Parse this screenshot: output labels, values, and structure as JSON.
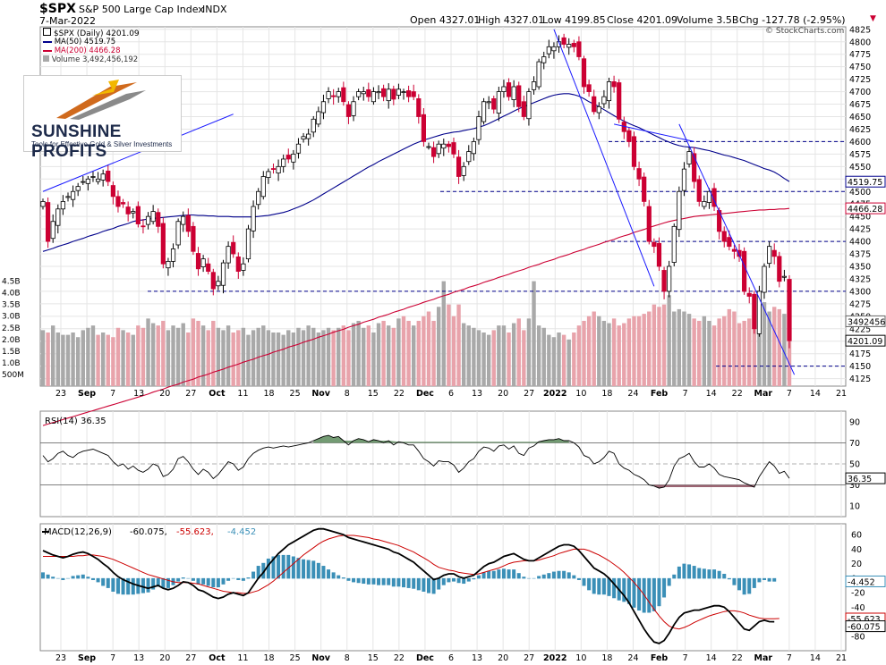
{
  "header": {
    "symbol": "$SPX",
    "name": "S&P 500 Large Cap Index",
    "exchange": "INDX",
    "date": "7-Mar-2022",
    "open": "Open 4327.01",
    "high": "High 4327.01",
    "low": "Low 4199.85",
    "close": "Close 4201.09",
    "volume": "Volume 3.5B",
    "chg": "Chg -127.78 (-2.95%)",
    "chg_arrow": "▼",
    "source": "© StockCharts.com"
  },
  "legend": {
    "price": "$SPX (Daily) 4201.09",
    "ma50": "MA(50) 4519.75",
    "ma200": "MA(200) 4466.28",
    "volume": "Volume 3,492,456,192"
  },
  "logo": {
    "name": "SUNSHINE PROFITS",
    "tagline": "Tools for Effective Gold & Silver Investments"
  },
  "colors": {
    "up": "#ffffff",
    "down": "#cc0033",
    "ma50": "#00008b",
    "ma200": "#cc0033",
    "volUp": "#a9a9a9",
    "volDown": "#e8a3ab",
    "macdHist": "#3a8fb7",
    "grid": "#e5e5e5",
    "trend": "#1a1aff"
  },
  "chart_data": [
    {
      "type": "candlestick",
      "title": "$SPX S&P 500 Large Cap Index INDX",
      "ylim": [
        4110,
        4830
      ],
      "y_ticks": [
        4125,
        4150,
        4175,
        4200,
        4225,
        4250,
        4275,
        4300,
        4325,
        4350,
        4375,
        4400,
        4425,
        4450,
        4475,
        4500,
        4525,
        4550,
        4575,
        4600,
        4625,
        4650,
        4675,
        4700,
        4725,
        4750,
        4775,
        4800,
        4825
      ],
      "x_ticks": [
        "23",
        "Sep",
        "7",
        "13",
        "20",
        "27",
        "Oct",
        "11",
        "18",
        "25",
        "Nov",
        "8",
        "15",
        "22",
        "Dec",
        "6",
        "13",
        "20",
        "27",
        "2022",
        "10",
        "18",
        "24",
        "Feb",
        "7",
        "14",
        "22",
        "Mar",
        "7",
        "14",
        "21"
      ],
      "last_price_label": "4201.09",
      "ma50_label": "4519.75",
      "ma200_label": "4466.28",
      "volume_label": "3492456",
      "volume_ticks": [
        "4.5B",
        "4.0B",
        "3.5B",
        "3.0B",
        "2.5B",
        "2.0B",
        "1.5B",
        "1.0B",
        "500M"
      ],
      "horizontal_levels": [
        4300,
        4400,
        4500,
        4600,
        4150
      ],
      "closes": [
        4480,
        4400,
        4440,
        4465,
        4480,
        4490,
        4500,
        4510,
        4520,
        4525,
        4530,
        4525,
        4535,
        4520,
        4490,
        4470,
        4475,
        4455,
        4460,
        4435,
        4430,
        4450,
        4460,
        4430,
        4355,
        4360,
        4385,
        4440,
        4450,
        4420,
        4380,
        4345,
        4365,
        4340,
        4305,
        4320,
        4357,
        4390,
        4375,
        4340,
        4355,
        4425,
        4470,
        4500,
        4530,
        4540,
        4545,
        4550,
        4565,
        4565,
        4575,
        4595,
        4610,
        4615,
        4645,
        4660,
        4680,
        4700,
        4690,
        4700,
        4680,
        4650,
        4680,
        4700,
        4700,
        4690,
        4700,
        4700,
        4690,
        4705,
        4685,
        4705,
        4700,
        4690,
        4690,
        4650,
        4600,
        4590,
        4570,
        4595,
        4595,
        4590,
        4575,
        4530,
        4550,
        4580,
        4600,
        4650,
        4680,
        4680,
        4665,
        4700,
        4710,
        4690,
        4710,
        4670,
        4650,
        4700,
        4720,
        4760,
        4770,
        4790,
        4790,
        4800,
        4795,
        4795,
        4790,
        4770,
        4710,
        4700,
        4660,
        4670,
        4690,
        4720,
        4710,
        4645,
        4620,
        4600,
        4550,
        4525,
        4480,
        4400,
        4390,
        4350,
        4300,
        4350,
        4430,
        4500,
        4545,
        4580,
        4520,
        4480,
        4480,
        4500,
        4470,
        4420,
        4400,
        4390,
        4380,
        4370,
        4300,
        4290,
        4225,
        4300,
        4350,
        4390,
        4370,
        4320,
        4330,
        4201
      ],
      "ma50": [
        4380,
        4383,
        4386,
        4390,
        4393,
        4396,
        4400,
        4403,
        4406,
        4410,
        4413,
        4416,
        4420,
        4423,
        4426,
        4430,
        4433,
        4436,
        4440,
        4442,
        4443,
        4445,
        4446,
        4447,
        4448,
        4449,
        4450,
        4451,
        4452,
        4453,
        4453,
        4452,
        4452,
        4451,
        4451,
        4450,
        4450,
        4450,
        4449,
        4449,
        4449,
        4449,
        4449,
        4450,
        4451,
        4452,
        4454,
        4456,
        4458,
        4461,
        4465,
        4469,
        4473,
        4478,
        4483,
        4489,
        4495,
        4501,
        4507,
        4513,
        4519,
        4525,
        4531,
        4537,
        4543,
        4549,
        4554,
        4560,
        4565,
        4570,
        4575,
        4580,
        4585,
        4590,
        4595,
        4599,
        4603,
        4606,
        4609,
        4612,
        4615,
        4617,
        4619,
        4620,
        4622,
        4624,
        4626,
        4629,
        4632,
        4636,
        4641,
        4646,
        4651,
        4656,
        4661,
        4666,
        4670,
        4674,
        4678,
        4682,
        4686,
        4690,
        4693,
        4695,
        4696,
        4696,
        4694,
        4691,
        4686,
        4680,
        4675,
        4670,
        4664,
        4658,
        4652,
        4646,
        4641,
        4636,
        4632,
        4628,
        4623,
        4618,
        4613,
        4608,
        4603,
        4599,
        4595,
        4592,
        4590,
        4589,
        4588,
        4586,
        4584,
        4582,
        4579,
        4576,
        4573,
        4571,
        4568,
        4565,
        4562,
        4558,
        4554,
        4550,
        4546,
        4543,
        4539,
        4533,
        4526,
        4520
      ],
      "ma200": [
        4025,
        4028,
        4031,
        4034,
        4038,
        4041,
        4044,
        4048,
        4051,
        4054,
        4058,
        4061,
        4064,
        4068,
        4071,
        4074,
        4078,
        4081,
        4084,
        4088,
        4091,
        4094,
        4098,
        4101,
        4104,
        4108,
        4111,
        4114,
        4118,
        4121,
        4124,
        4128,
        4131,
        4134,
        4138,
        4141,
        4144,
        4148,
        4151,
        4154,
        4158,
        4161,
        4164,
        4168,
        4171,
        4174,
        4178,
        4181,
        4184,
        4188,
        4191,
        4194,
        4198,
        4201,
        4204,
        4208,
        4211,
        4214,
        4218,
        4221,
        4224,
        4228,
        4231,
        4234,
        4238,
        4241,
        4244,
        4248,
        4251,
        4254,
        4258,
        4261,
        4264,
        4268,
        4271,
        4274,
        4278,
        4281,
        4284,
        4288,
        4291,
        4294,
        4298,
        4301,
        4304,
        4308,
        4311,
        4314,
        4318,
        4321,
        4324,
        4328,
        4331,
        4334,
        4338,
        4341,
        4344,
        4348,
        4351,
        4354,
        4358,
        4361,
        4364,
        4368,
        4371,
        4374,
        4378,
        4381,
        4384,
        4388,
        4391,
        4394,
        4398,
        4401,
        4404,
        4408,
        4411,
        4414,
        4418,
        4421,
        4424,
        4428,
        4431,
        4434,
        4437,
        4440,
        4442,
        4444,
        4446,
        4448,
        4450,
        4451,
        4452,
        4453,
        4454,
        4455,
        4456,
        4457,
        4458,
        4459,
        4460,
        4461,
        4462,
        4463,
        4463,
        4464,
        4464,
        4465,
        4465,
        4466
      ],
      "volumes": [
        2.4,
        2.3,
        2.6,
        2.3,
        2.2,
        2.2,
        2.3,
        2.1,
        2.4,
        2.5,
        2.6,
        2.2,
        2.3,
        2.2,
        2.1,
        2.5,
        2.4,
        2.3,
        2.2,
        2.6,
        2.5,
        2.9,
        2.7,
        2.6,
        2.8,
        2.4,
        2.6,
        2.5,
        2.7,
        2.3,
        2.9,
        2.8,
        2.6,
        2.4,
        2.8,
        2.5,
        2.4,
        2.6,
        2.3,
        2.4,
        2.5,
        2.2,
        2.4,
        2.5,
        2.6,
        2.4,
        2.3,
        2.3,
        2.2,
        2.4,
        2.3,
        2.5,
        2.4,
        2.6,
        2.5,
        2.3,
        2.4,
        2.5,
        2.4,
        2.5,
        2.6,
        2.4,
        2.7,
        2.8,
        2.5,
        2.6,
        2.3,
        2.7,
        2.8,
        2.6,
        2.5,
        2.9,
        3.0,
        2.8,
        2.6,
        2.8,
        3.0,
        3.2,
        2.8,
        3.4,
        4.5,
        3.5,
        3.0,
        3.5,
        2.7,
        2.6,
        2.5,
        2.4,
        2.3,
        2.2,
        2.4,
        2.6,
        2.6,
        2.3,
        2.7,
        2.9,
        2.4,
        2.9,
        4.5,
        2.6,
        2.5,
        2.2,
        2.1,
        2.3,
        2.2,
        2.0,
        2.3,
        2.6,
        2.8,
        3.0,
        3.2,
        3.0,
        2.8,
        2.7,
        2.9,
        2.6,
        2.7,
        2.9,
        3.0,
        3.0,
        3.1,
        3.2,
        3.5,
        3.4,
        3.5,
        3.9,
        3.2,
        3.3,
        3.2,
        3.1,
        2.9,
        2.8,
        3.0,
        2.8,
        2.6,
        2.9,
        3.0,
        3.3,
        3.2,
        2.7,
        2.8,
        2.9,
        3.1,
        3.5,
        3.6,
        3.2,
        3.4,
        3.3,
        3.1,
        3.5
      ]
    },
    {
      "type": "line",
      "title": "RSI(14) 36.35",
      "ylim": [
        0,
        100
      ],
      "y_ticks": [
        10,
        30,
        50,
        70,
        90
      ],
      "levels": [
        30,
        50,
        70
      ],
      "last_label": "36.35",
      "values": [
        58,
        52,
        55,
        60,
        62,
        58,
        56,
        60,
        62,
        63,
        64,
        62,
        60,
        58,
        52,
        48,
        50,
        45,
        48,
        44,
        42,
        45,
        50,
        48,
        38,
        40,
        45,
        55,
        57,
        52,
        45,
        40,
        45,
        42,
        36,
        40,
        46,
        52,
        50,
        44,
        47,
        55,
        60,
        63,
        65,
        66,
        65,
        66,
        67,
        66,
        67,
        68,
        69,
        70,
        72,
        74,
        76,
        77,
        75,
        76,
        72,
        68,
        72,
        74,
        73,
        71,
        73,
        72,
        70,
        72,
        68,
        71,
        70,
        68,
        68,
        62,
        55,
        52,
        48,
        53,
        52,
        52,
        49,
        42,
        46,
        52,
        55,
        62,
        66,
        65,
        62,
        67,
        68,
        64,
        67,
        60,
        58,
        65,
        67,
        71,
        72,
        73,
        73,
        74,
        72,
        72,
        70,
        66,
        58,
        56,
        50,
        52,
        56,
        62,
        60,
        50,
        46,
        44,
        40,
        38,
        35,
        30,
        29,
        27,
        28,
        35,
        48,
        55,
        57,
        60,
        52,
        47,
        47,
        50,
        46,
        40,
        38,
        37,
        36,
        35,
        32,
        30,
        28,
        38,
        45,
        52,
        48,
        41,
        43,
        36.35
      ]
    },
    {
      "type": "line",
      "title": "MACD(12,26,9) -60.075, -55.623, -4.452",
      "ylim": [
        -100,
        75
      ],
      "y_ticks": [
        60,
        40,
        20,
        0,
        -20,
        -40,
        -60,
        -80
      ],
      "last_macd_label": "-60.075",
      "last_signal_label": "-55.623",
      "last_hist_label": "-4.452",
      "macd": [
        38,
        35,
        32,
        30,
        28,
        30,
        33,
        35,
        36,
        34,
        30,
        26,
        20,
        15,
        8,
        2,
        -2,
        -5,
        -8,
        -10,
        -12,
        -14,
        -12,
        -10,
        -14,
        -16,
        -14,
        -10,
        -5,
        -6,
        -10,
        -16,
        -18,
        -22,
        -26,
        -28,
        -26,
        -22,
        -20,
        -22,
        -24,
        -20,
        -10,
        0,
        8,
        18,
        26,
        34,
        40,
        46,
        50,
        54,
        58,
        62,
        66,
        68,
        68,
        66,
        64,
        62,
        60,
        56,
        54,
        52,
        50,
        48,
        46,
        44,
        42,
        40,
        36,
        34,
        30,
        26,
        22,
        16,
        10,
        4,
        -2,
        0,
        4,
        6,
        6,
        2,
        0,
        2,
        4,
        10,
        16,
        20,
        22,
        26,
        30,
        32,
        34,
        30,
        26,
        24,
        24,
        28,
        32,
        36,
        40,
        44,
        46,
        46,
        44,
        38,
        30,
        22,
        14,
        10,
        6,
        0,
        -8,
        -16,
        -24,
        -34,
        -46,
        -58,
        -70,
        -80,
        -88,
        -90,
        -86,
        -76,
        -64,
        -54,
        -48,
        -46,
        -44,
        -44,
        -42,
        -40,
        -38,
        -38,
        -40,
        -46,
        -54,
        -62,
        -70,
        -72,
        -66,
        -60,
        -58,
        -60,
        -60.075
      ],
      "signal": [
        30,
        30,
        30,
        30,
        30,
        30,
        30,
        31,
        31,
        32,
        32,
        31,
        30,
        28,
        26,
        23,
        20,
        17,
        14,
        11,
        8,
        5,
        3,
        1,
        -1,
        -3,
        -5,
        -6,
        -6,
        -6,
        -7,
        -8,
        -10,
        -12,
        -14,
        -16,
        -18,
        -19,
        -20,
        -20,
        -21,
        -21,
        -19,
        -17,
        -13,
        -9,
        -4,
        2,
        8,
        14,
        20,
        26,
        32,
        37,
        42,
        47,
        51,
        54,
        56,
        58,
        59,
        59,
        59,
        58,
        57,
        56,
        54,
        53,
        51,
        49,
        47,
        45,
        42,
        39,
        36,
        32,
        28,
        24,
        19,
        15,
        13,
        11,
        10,
        8,
        7,
        6,
        5,
        6,
        8,
        10,
        12,
        14,
        17,
        20,
        22,
        23,
        24,
        24,
        24,
        25,
        27,
        29,
        31,
        34,
        36,
        38,
        40,
        40,
        40,
        38,
        35,
        32,
        28,
        24,
        19,
        14,
        8,
        1,
        -6,
        -14,
        -23,
        -33,
        -43,
        -52,
        -60,
        -66,
        -69,
        -70,
        -68,
        -65,
        -61,
        -58,
        -55,
        -52,
        -50,
        -48,
        -46,
        -45,
        -45,
        -46,
        -48,
        -51,
        -53,
        -55,
        -56,
        -56,
        -56,
        -55.623
      ]
    }
  ]
}
